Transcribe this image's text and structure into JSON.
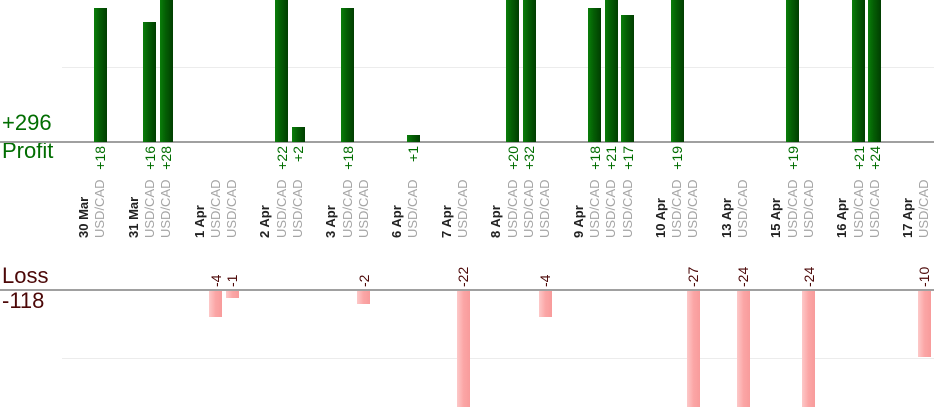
{
  "chart_data": {
    "type": "bar",
    "description": "Dual-pane trade profit/loss by date chart; green bars above a zero baseline (profit pane, bars clipped at top edge), pink bars hanging below a second zero baseline (loss pane, long bars clipped at pane bottom). X axis shows trade date (bold) and one instrument label per trade, all rotated 90 degrees.",
    "instrument": "USD/CAD",
    "profit_pane": {
      "axis_title": "Profit",
      "total": "+296",
      "unlabeled_gridline_value": 10
    },
    "loss_pane": {
      "axis_title": "Loss",
      "total": "-118",
      "unlabeled_gridline_value": -10
    },
    "groups": [
      {
        "date": "30 Mar",
        "trades": [
          {
            "instrument": "USD/CAD",
            "value": 18
          }
        ]
      },
      {
        "date": "31 Mar",
        "trades": [
          {
            "instrument": "USD/CAD",
            "value": 16
          },
          {
            "instrument": "USD/CAD",
            "value": 28
          }
        ]
      },
      {
        "date": "1 Apr",
        "trades": [
          {
            "instrument": "USD/CAD",
            "value": -4
          },
          {
            "instrument": "USD/CAD",
            "value": -1
          }
        ]
      },
      {
        "date": "2 Apr",
        "trades": [
          {
            "instrument": "USD/CAD",
            "value": 22
          },
          {
            "instrument": "USD/CAD",
            "value": 2
          }
        ]
      },
      {
        "date": "3 Apr",
        "trades": [
          {
            "instrument": "USD/CAD",
            "value": 18
          },
          {
            "instrument": "USD/CAD",
            "value": -2
          }
        ]
      },
      {
        "date": "6 Apr",
        "trades": [
          {
            "instrument": "USD/CAD",
            "value": 1
          }
        ]
      },
      {
        "date": "7 Apr",
        "trades": [
          {
            "instrument": "USD/CAD",
            "value": -22
          }
        ]
      },
      {
        "date": "8 Apr",
        "trades": [
          {
            "instrument": "USD/CAD",
            "value": 20
          },
          {
            "instrument": "USD/CAD",
            "value": 32
          },
          {
            "instrument": "USD/CAD",
            "value": -4
          }
        ]
      },
      {
        "date": "9 Apr",
        "trades": [
          {
            "instrument": "USD/CAD",
            "value": 18
          },
          {
            "instrument": "USD/CAD",
            "value": 21
          },
          {
            "instrument": "USD/CAD",
            "value": 17
          }
        ]
      },
      {
        "date": "10 Apr",
        "trades": [
          {
            "instrument": "USD/CAD",
            "value": 19
          },
          {
            "instrument": "USD/CAD",
            "value": -27
          }
        ]
      },
      {
        "date": "13 Apr",
        "trades": [
          {
            "instrument": "USD/CAD",
            "value": -24
          }
        ]
      },
      {
        "date": "15 Apr",
        "trades": [
          {
            "instrument": "USD/CAD",
            "value": 19
          },
          {
            "instrument": "USD/CAD",
            "value": -24
          }
        ]
      },
      {
        "date": "16 Apr",
        "trades": [
          {
            "instrument": "USD/CAD",
            "value": 21
          },
          {
            "instrument": "USD/CAD",
            "value": 24
          }
        ]
      },
      {
        "date": "17 Apr",
        "trades": [
          {
            "instrument": "USD/CAD",
            "value": -10
          }
        ]
      }
    ],
    "colors": {
      "profit_bar_light": "#0a7e0a",
      "profit_bar_mid": "#045d04",
      "profit_bar_dark": "#013e01",
      "loss_bar_light": "#fdc9c9",
      "loss_bar_mid": "#fba6a6",
      "loss_bar_dark": "#f89b9b",
      "profit_text": "#016d01",
      "loss_text": "#4c0808",
      "date_text": "#222222",
      "instrument_text": "#a5a5a5",
      "axis_line": "#a0a0a0",
      "gridline": "#ececec",
      "background": "#ffffff"
    }
  }
}
